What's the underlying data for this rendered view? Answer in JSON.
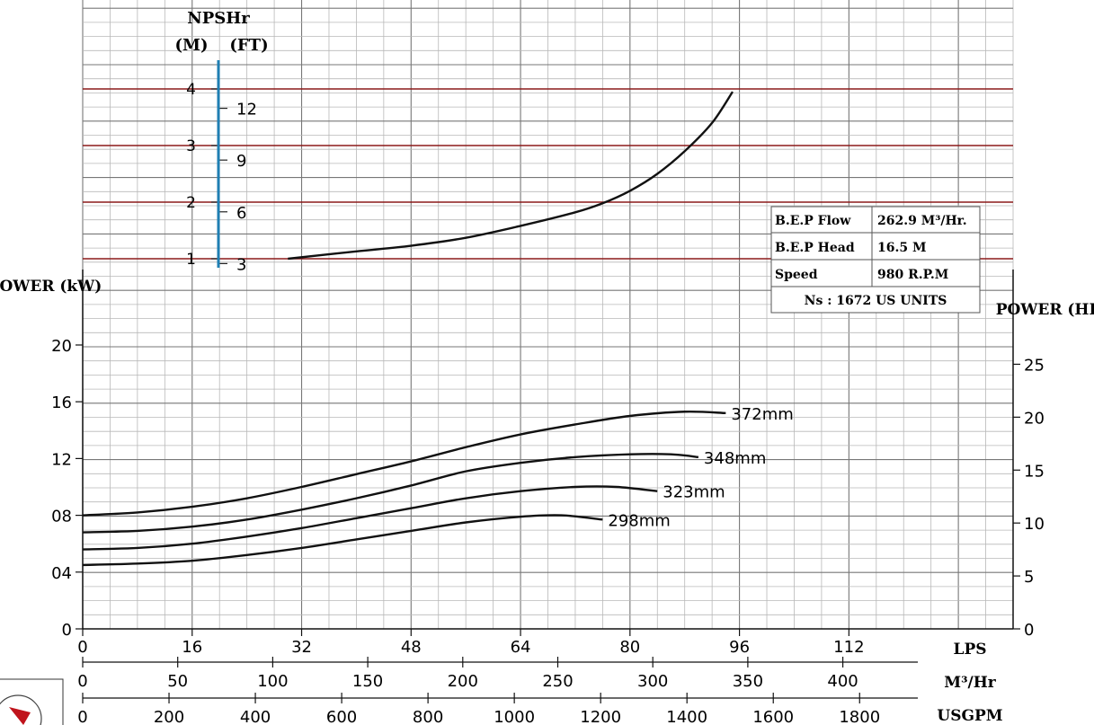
{
  "chart_data": [
    {
      "type": "line",
      "title": "",
      "xlabel": "LPS",
      "ylabel_left": "POWER (kW)",
      "ylabel_right": "POWER (HP)",
      "x_ticks": [
        0,
        16,
        32,
        48,
        64,
        80,
        96,
        112
      ],
      "xlim": [
        0,
        136
      ],
      "y_ticks": [
        "0",
        "04",
        "08",
        "12",
        "16",
        "20"
      ],
      "ylim": [
        0,
        20
      ],
      "right_y_ticks": [
        0,
        5,
        10,
        15,
        20,
        25
      ],
      "grid": true,
      "series": [
        {
          "name": "372mm",
          "x": [
            0,
            8,
            16,
            24,
            32,
            40,
            48,
            56,
            64,
            72,
            80,
            88,
            94
          ],
          "y": [
            8.0,
            8.2,
            8.6,
            9.2,
            10.0,
            10.9,
            11.8,
            12.8,
            13.7,
            14.4,
            15.0,
            15.3,
            15.2
          ]
        },
        {
          "name": "348mm",
          "x": [
            0,
            8,
            16,
            24,
            32,
            40,
            48,
            56,
            64,
            72,
            80,
            86,
            90
          ],
          "y": [
            6.8,
            6.9,
            7.2,
            7.7,
            8.4,
            9.2,
            10.1,
            11.1,
            11.7,
            12.1,
            12.3,
            12.3,
            12.1
          ]
        },
        {
          "name": "323mm",
          "x": [
            0,
            8,
            16,
            24,
            32,
            40,
            48,
            56,
            64,
            72,
            78,
            84
          ],
          "y": [
            5.6,
            5.7,
            6.0,
            6.5,
            7.1,
            7.8,
            8.5,
            9.2,
            9.7,
            10.0,
            10.0,
            9.7
          ]
        },
        {
          "name": "298mm",
          "x": [
            0,
            8,
            16,
            24,
            32,
            40,
            48,
            56,
            64,
            70,
            76
          ],
          "y": [
            4.5,
            4.6,
            4.8,
            5.2,
            5.7,
            6.3,
            6.9,
            7.5,
            7.9,
            8.0,
            7.7
          ]
        }
      ]
    },
    {
      "type": "line",
      "title": "NPSHr",
      "ylabel_left": "(M)",
      "ylabel_right": "(FT)",
      "y_ticks": [
        1,
        2,
        3,
        4
      ],
      "ylim": [
        1,
        4
      ],
      "right_y_ticks": [
        3,
        6,
        9,
        12
      ],
      "grid": true,
      "series": [
        {
          "name": "NPSHr",
          "x": [
            30,
            40,
            48,
            56,
            64,
            72,
            76,
            80,
            84,
            88,
            92,
            95
          ],
          "y": [
            1.0,
            1.13,
            1.23,
            1.37,
            1.58,
            1.82,
            1.98,
            2.2,
            2.5,
            2.9,
            3.4,
            3.95
          ]
        }
      ]
    }
  ],
  "secondary_axes": {
    "m3hr": {
      "label": "M³/Hr",
      "ticks": [
        0,
        50,
        100,
        150,
        200,
        250,
        300,
        350,
        400
      ]
    },
    "usgpm": {
      "label": "USGPM",
      "ticks": [
        0,
        200,
        400,
        600,
        800,
        1000,
        1200,
        1400,
        1600,
        1800
      ]
    }
  },
  "info_box": {
    "rows": [
      {
        "label": "B.E.P Flow",
        "value": "262.9 M³/Hr."
      },
      {
        "label": "B.E.P Head",
        "value": "16.5  M"
      },
      {
        "label": "Speed",
        "value": "980  R.P.M"
      }
    ],
    "ns_text": "Ns  :  1672  US  UNITS"
  },
  "colors": {
    "grid": "#b8b8b8",
    "grid_major": "#777777",
    "curve": "#111111",
    "npsh_lines": "#8b1a1a",
    "npsh_axis": "#1f7fb3",
    "logo": "#c0141c"
  },
  "logo": "company-logo"
}
